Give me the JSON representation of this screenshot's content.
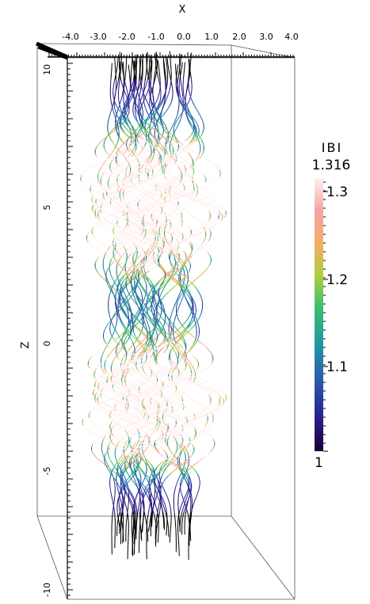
{
  "x_axis": {
    "title": "X",
    "tick_labels": [
      "-4.0",
      "-3.0",
      "-2.0",
      "-1.0",
      "0.0",
      "1.0",
      "2.0",
      "3.0",
      "4.0"
    ]
  },
  "z_axis": {
    "title": "Z",
    "tick_labels": [
      "10",
      "5",
      "0",
      "-5",
      "-10"
    ]
  },
  "colorbar": {
    "title": "IBI",
    "max_label": "1.316",
    "min_label": "1",
    "tick_labels": [
      "1.3",
      "1.2",
      "1.1"
    ],
    "range": [
      1.0,
      1.316
    ],
    "colors": [
      "#1a0033",
      "#2b1d8c",
      "#2a5fb0",
      "#1f9aa0",
      "#3fbf6e",
      "#a9cf3a",
      "#f0b060",
      "#f4a3a3",
      "#fff0f0"
    ]
  },
  "field_lines": {
    "color_low": "#000000",
    "color_high": "#f6b6b6"
  }
}
